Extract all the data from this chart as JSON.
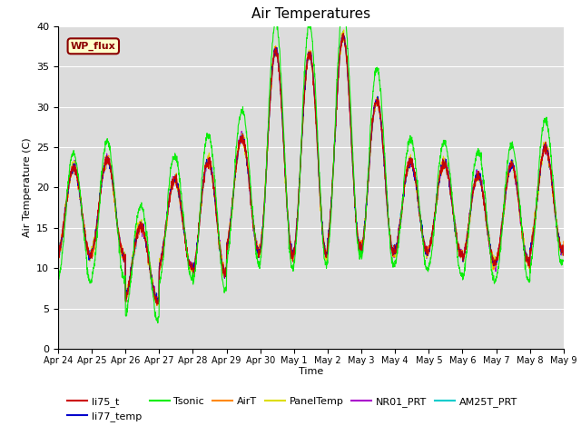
{
  "title": "Air Temperatures",
  "xlabel": "Time",
  "ylabel": "Air Temperature (C)",
  "ylim": [
    0,
    40
  ],
  "yticks": [
    0,
    5,
    10,
    15,
    20,
    25,
    30,
    35,
    40
  ],
  "date_labels": [
    "Apr 24",
    "Apr 25",
    "Apr 26",
    "Apr 27",
    "Apr 28",
    "Apr 29",
    "Apr 30",
    "May 1",
    "May 2",
    "May 3",
    "May 4",
    "May 5",
    "May 6",
    "May 7",
    "May 8",
    "May 9"
  ],
  "series_colors": {
    "li75_t": "#cc0000",
    "li77_temp": "#0000cc",
    "Tsonic": "#00ee00",
    "AirT": "#ff8800",
    "PanelTemp": "#dddd00",
    "NR01_PRT": "#aa00cc",
    "AM25T_PRT": "#00cccc"
  },
  "series_order": [
    "AM25T_PRT",
    "NR01_PRT",
    "PanelTemp",
    "AirT",
    "li77_temp",
    "li75_t",
    "Tsonic"
  ],
  "legend_order": [
    "li75_t",
    "li77_temp",
    "Tsonic",
    "AirT",
    "PanelTemp",
    "NR01_PRT",
    "AM25T_PRT"
  ],
  "annotation_text": "WP_flux",
  "bg_color": "#dcdcdc",
  "title_fontsize": 11,
  "axis_fontsize": 8,
  "legend_fontsize": 8
}
